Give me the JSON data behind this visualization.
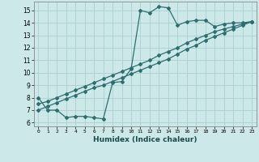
{
  "xlabel": "Humidex (Indice chaleur)",
  "bg_color": "#cce8e8",
  "line_color": "#2d6e6e",
  "grid_color": "#aacfcf",
  "xlim": [
    -0.5,
    23.5
  ],
  "ylim": [
    5.7,
    15.7
  ],
  "yticks": [
    6,
    7,
    8,
    9,
    10,
    11,
    12,
    13,
    14,
    15
  ],
  "xticks": [
    0,
    1,
    2,
    3,
    4,
    5,
    6,
    7,
    8,
    9,
    10,
    11,
    12,
    13,
    14,
    15,
    16,
    17,
    18,
    19,
    20,
    21,
    22,
    23
  ],
  "series1_x": [
    0,
    1,
    2,
    3,
    4,
    5,
    6,
    7,
    8,
    9,
    10,
    11,
    12,
    13,
    14,
    15,
    16,
    17,
    18,
    19,
    20,
    21,
    22,
    23
  ],
  "series1_y": [
    8.0,
    7.0,
    7.0,
    6.4,
    6.5,
    6.5,
    6.4,
    6.3,
    9.2,
    9.3,
    10.3,
    15.0,
    14.8,
    15.3,
    15.2,
    13.8,
    14.1,
    14.2,
    14.2,
    13.7,
    13.9,
    14.0,
    14.0,
    14.1
  ],
  "series2_x": [
    0,
    1,
    2,
    3,
    4,
    5,
    6,
    7,
    8,
    9,
    10,
    11,
    12,
    13,
    14,
    15,
    16,
    17,
    18,
    19,
    20,
    21,
    22,
    23
  ],
  "series2_y": [
    7.0,
    7.3,
    7.6,
    7.9,
    8.2,
    8.5,
    8.8,
    9.0,
    9.3,
    9.6,
    9.9,
    10.2,
    10.5,
    10.8,
    11.1,
    11.5,
    11.9,
    12.2,
    12.6,
    12.9,
    13.2,
    13.5,
    13.8,
    14.1
  ],
  "series3_x": [
    0,
    1,
    2,
    3,
    4,
    5,
    6,
    7,
    8,
    9,
    10,
    11,
    12,
    13,
    14,
    15,
    16,
    17,
    18,
    19,
    20,
    21,
    22,
    23
  ],
  "series3_y": [
    7.5,
    7.7,
    8.0,
    8.3,
    8.6,
    8.9,
    9.2,
    9.5,
    9.8,
    10.1,
    10.4,
    10.7,
    11.0,
    11.4,
    11.7,
    12.0,
    12.4,
    12.7,
    13.0,
    13.3,
    13.5,
    13.7,
    13.9,
    14.1
  ],
  "marker": "D",
  "markersize": 2.0,
  "linewidth": 0.9
}
